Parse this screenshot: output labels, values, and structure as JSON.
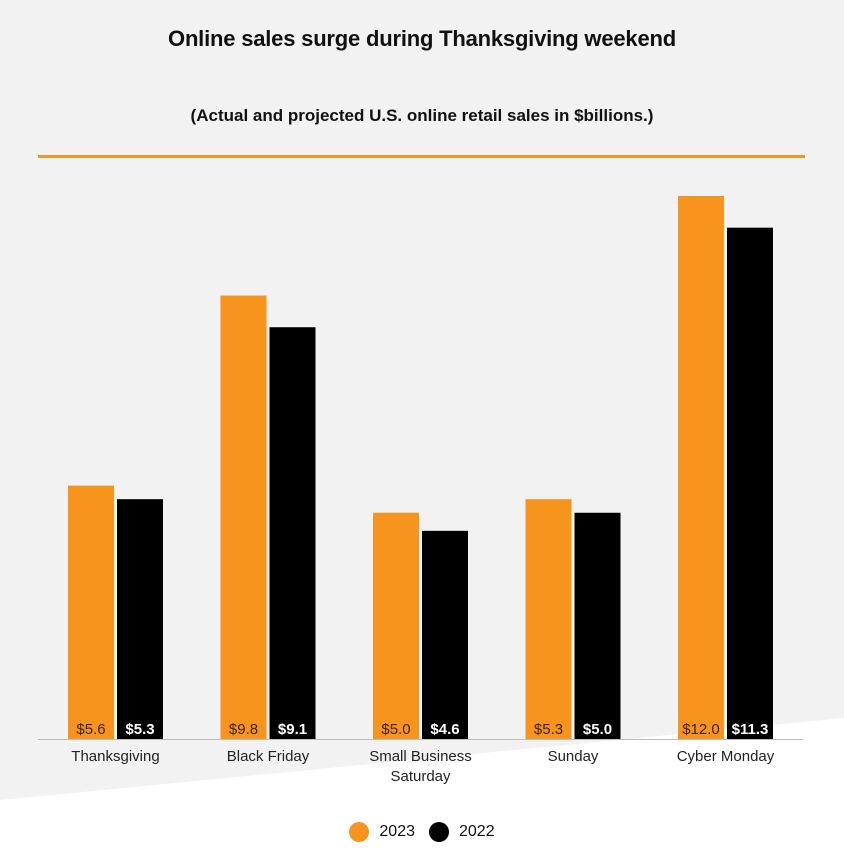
{
  "title": "Online sales surge during Thanksgiving weekend",
  "subtitle": "(Actual and projected U.S. online retail sales in $billions.)",
  "colors": {
    "accent": "#f7941d",
    "dark": "#000000",
    "background": "#f2f2f2"
  },
  "legend": [
    {
      "label": "2023",
      "color": "#f7941d"
    },
    {
      "label": "2022",
      "color": "#000000"
    }
  ],
  "chart_data": {
    "type": "bar",
    "categories": [
      [
        "Thanksgiving"
      ],
      [
        "Black Friday"
      ],
      [
        "Small Business",
        "Saturday"
      ],
      [
        "Sunday"
      ],
      [
        "Cyber Monday"
      ]
    ],
    "series": [
      {
        "name": "2023",
        "color": "#f7941d",
        "values": [
          5.6,
          9.8,
          5.0,
          5.3,
          12.0
        ],
        "labels": [
          "$5.6",
          "$9.8",
          "$5.0",
          "$5.3",
          "$12.0"
        ]
      },
      {
        "name": "2022",
        "color": "#000000",
        "values": [
          5.3,
          9.1,
          4.6,
          5.0,
          11.3
        ],
        "labels": [
          "$5.3",
          "$9.1",
          "$4.6",
          "$5.0",
          "$11.3"
        ]
      }
    ],
    "ylim": [
      0,
      12.0
    ],
    "grid": false,
    "legend_position": "bottom",
    "xlabel": "",
    "ylabel": ""
  }
}
